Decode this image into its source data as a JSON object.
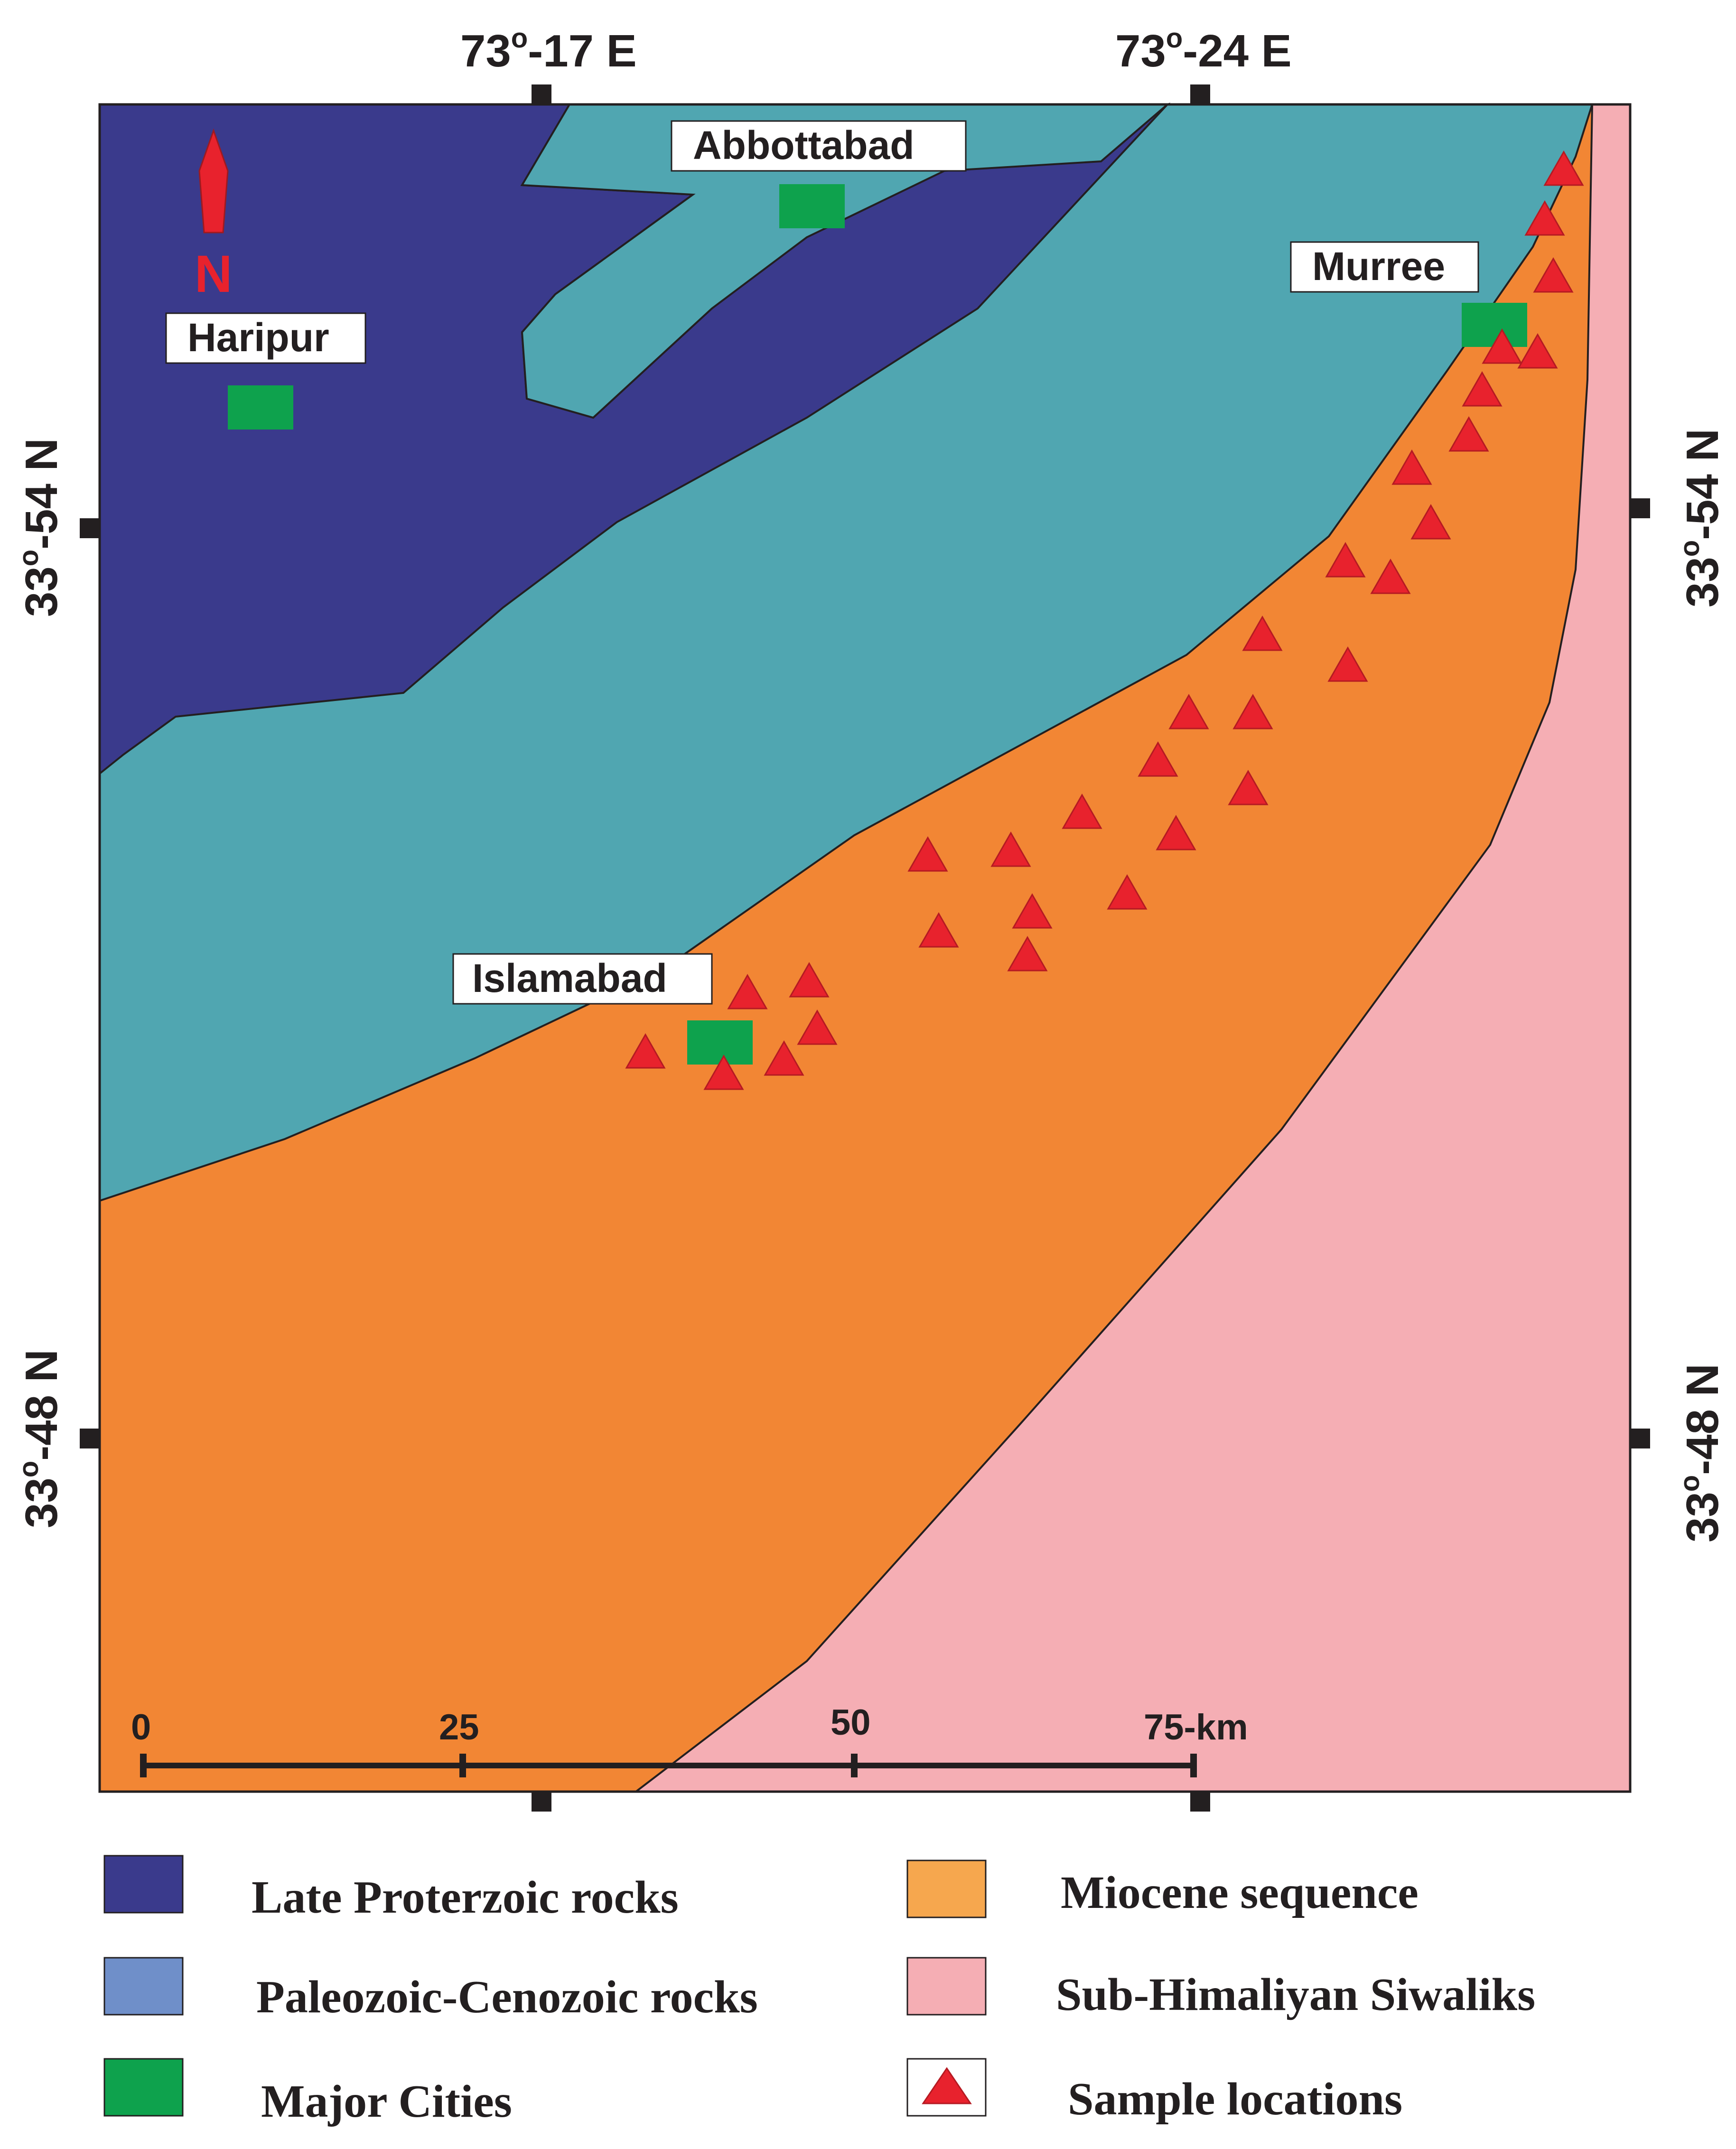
{
  "coordinates": {
    "top_left": {
      "deg": "73",
      "sup": "o",
      "rest": "-17 E"
    },
    "top_right": {
      "deg": "73",
      "sup": "o",
      "rest": "-24 E"
    },
    "left_upper": {
      "deg": "33",
      "sup": "o",
      "rest": "-54 N"
    },
    "left_lower": {
      "deg": "33",
      "sup": "o",
      "rest": "-48 N"
    },
    "right_upper": {
      "deg": "33",
      "sup": "o",
      "rest": "-54 N"
    },
    "right_lower": {
      "deg": "33",
      "sup": "o",
      "rest": "-48 N"
    }
  },
  "north_label": "N",
  "cities": {
    "abbottabad": "Abbottabad",
    "haripur": "Haripur",
    "murree": "Murree",
    "islamabad": "Islamabad"
  },
  "scale_bar": {
    "ticks": [
      "0",
      "25",
      "50",
      "75-km"
    ]
  },
  "legend": [
    {
      "key": "late-proterozoic",
      "label": "Late Proterzoic rocks",
      "color": "#3a3a8c"
    },
    {
      "key": "paleozoic-cenozoic",
      "label": "Paleozoic-Cenozoic rocks",
      "color": "#6f8fc9"
    },
    {
      "key": "major-cities",
      "label": "Major Cities",
      "color": "#0ea24d"
    },
    {
      "key": "miocene",
      "label": "Miocene sequence",
      "color": "#f6a74e"
    },
    {
      "key": "siwaliks",
      "label": "Sub-Himaliyan Siwaliks",
      "color": "#f5aeb4"
    },
    {
      "key": "samples",
      "label": "Sample locations",
      "color": "#e8222d"
    }
  ],
  "colors": {
    "proterozoic_fill": "#3a3a8c",
    "paleozoic_fill": "#50a6b1",
    "miocene_fill": "#f28634",
    "siwaliks_fill": "#f5aeb4",
    "city_fill": "#0ea24d",
    "sample_fill": "#e8222d"
  }
}
